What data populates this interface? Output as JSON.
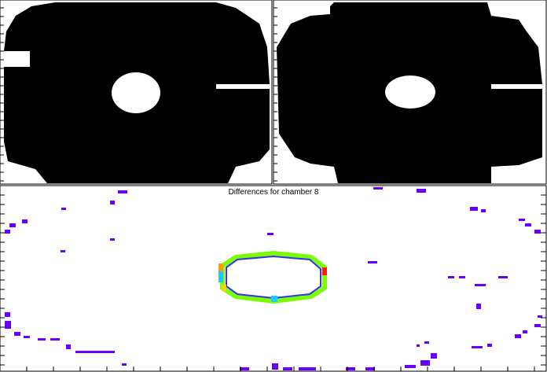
{
  "title": "Differences for chamber 8"
}
